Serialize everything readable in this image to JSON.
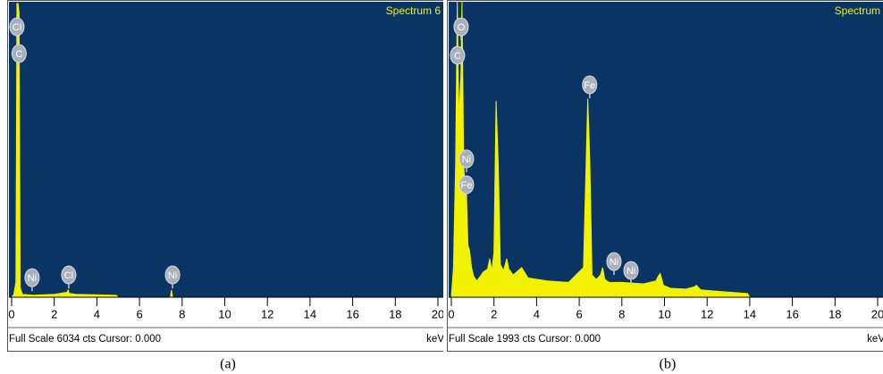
{
  "chart_data": [
    {
      "type": "area",
      "title": "Spectrum 6",
      "caption": "(a)",
      "footer": "Full Scale 6034 cts Cursor: 0.000",
      "xlabel": "keV",
      "color": "#f2f200",
      "background": "#0a3464",
      "xlim": [
        0,
        20
      ],
      "xticks": [
        0,
        2,
        4,
        6,
        8,
        10,
        12,
        14,
        16,
        18,
        20
      ],
      "ylim": [
        0,
        6034
      ],
      "x": [
        0,
        0.1,
        0.2,
        0.25,
        0.3,
        0.35,
        0.4,
        0.5,
        1.0,
        2.0,
        2.6,
        2.65,
        2.7,
        3.0,
        4.9,
        5.0,
        5.1,
        7.45,
        7.5,
        7.55
      ],
      "values": [
        0,
        50,
        300,
        6000,
        6000,
        5800,
        200,
        60,
        40,
        60,
        100,
        150,
        80,
        60,
        40,
        0,
        null,
        0,
        150,
        0
      ],
      "peak_labels": [
        {
          "label": "Cl",
          "x": 0.25,
          "y": 5524
        },
        {
          "label": "C",
          "x": 0.35,
          "y": 4977
        },
        {
          "label": "Ni",
          "x": 0.96,
          "y": 400
        },
        {
          "label": "Cl",
          "x": 2.68,
          "y": 455
        },
        {
          "label": "Ni",
          "x": 7.55,
          "y": 455
        }
      ]
    },
    {
      "type": "area",
      "title": "Spectrum",
      "caption": "(b)",
      "footer": "Full Scale 1993 cts Cursor: 0.000",
      "xlabel": "keV",
      "color": "#f2f200",
      "background": "#0a3464",
      "xlim": [
        0,
        20
      ],
      "xticks": [
        0,
        2,
        4,
        6,
        8,
        10,
        12,
        14,
        16,
        18,
        20
      ],
      "ylim": [
        0,
        1993
      ],
      "x": [
        0,
        0.1,
        0.2,
        0.28,
        0.35,
        0.45,
        0.5,
        0.58,
        0.65,
        0.7,
        0.78,
        0.85,
        0.95,
        1.05,
        1.2,
        1.5,
        1.7,
        1.8,
        1.9,
        2.0,
        2.1,
        2.2,
        2.3,
        2.45,
        2.6,
        2.7,
        2.9,
        3.3,
        3.6,
        4.5,
        5.5,
        6.2,
        6.4,
        6.5,
        6.6,
        6.8,
        7.0,
        7.1,
        7.2,
        7.4,
        8.0,
        9.0,
        9.6,
        9.7,
        9.8,
        9.95,
        10.3,
        11.0,
        11.4,
        11.5,
        11.7,
        12.5,
        13.9,
        14.0
      ],
      "values": [
        0,
        200,
        900,
        1993,
        1200,
        1500,
        1993,
        900,
        700,
        740,
        350,
        320,
        200,
        140,
        110,
        170,
        190,
        260,
        180,
        300,
        1325,
        900,
        220,
        180,
        260,
        190,
        150,
        200,
        130,
        110,
        100,
        200,
        1340,
        900,
        150,
        120,
        150,
        200,
        120,
        100,
        100,
        90,
        110,
        140,
        160,
        80,
        60,
        55,
        70,
        80,
        50,
        40,
        25,
        0
      ],
      "peak_labels": [
        {
          "label": "O",
          "x": 0.46,
          "y": 1824
        },
        {
          "label": "C",
          "x": 0.29,
          "y": 1632
        },
        {
          "label": "Fe",
          "x": 6.49,
          "y": 1433
        },
        {
          "label": "Ni",
          "x": 0.71,
          "y": 933
        },
        {
          "label": "Fe",
          "x": 0.71,
          "y": 759
        },
        {
          "label": "Ni",
          "x": 7.63,
          "y": 241
        },
        {
          "label": "Ni",
          "x": 8.43,
          "y": 181
        }
      ]
    }
  ]
}
